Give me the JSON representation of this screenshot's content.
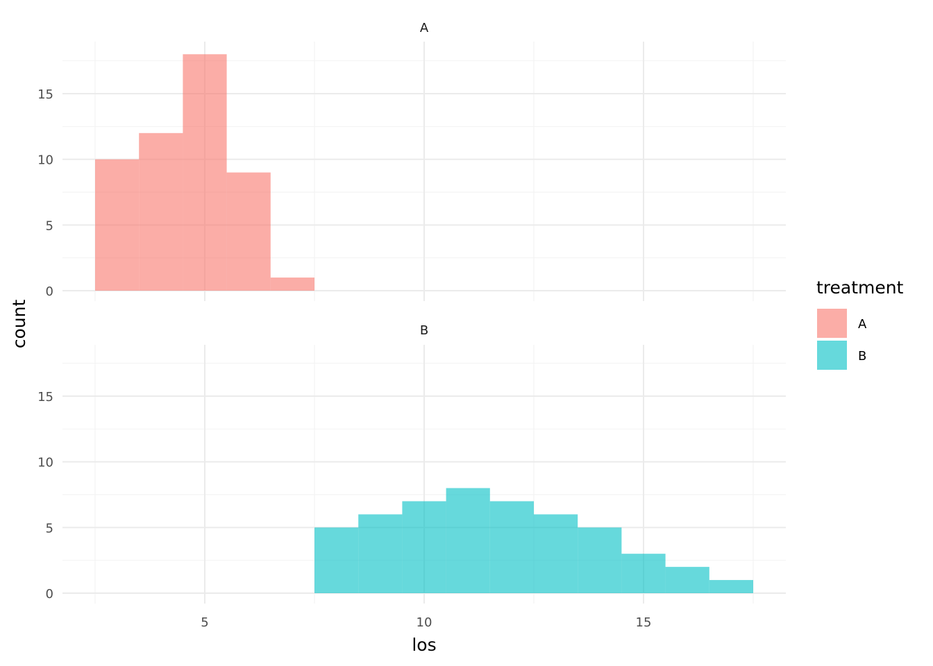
{
  "chart_data": {
    "type": "bar",
    "subtype": "histogram-faceted",
    "xlabel": "los",
    "ylabel": "count",
    "xlim": [
      2.0,
      18.5
    ],
    "ylim": [
      0,
      19
    ],
    "x_ticks": [
      5,
      10,
      15
    ],
    "y_ticks": [
      0,
      5,
      10,
      15
    ],
    "bin_width": 1,
    "grid": true,
    "legend": {
      "title": "treatment",
      "placement": "right",
      "entries": [
        {
          "label": "A",
          "color": "#F8766D"
        },
        {
          "label": "B",
          "color": "#00BFC4"
        }
      ]
    },
    "panels": [
      {
        "strip": "A",
        "color": "#F8766D",
        "bins": [
          {
            "x": 3,
            "count": 10
          },
          {
            "x": 4,
            "count": 12
          },
          {
            "x": 5,
            "count": 18
          },
          {
            "x": 6,
            "count": 9
          },
          {
            "x": 7,
            "count": 1
          }
        ]
      },
      {
        "strip": "B",
        "color": "#00BFC4",
        "bins": [
          {
            "x": 8,
            "count": 5
          },
          {
            "x": 9,
            "count": 6
          },
          {
            "x": 10,
            "count": 7
          },
          {
            "x": 11,
            "count": 8
          },
          {
            "x": 12,
            "count": 7
          },
          {
            "x": 13,
            "count": 6
          },
          {
            "x": 14,
            "count": 5
          },
          {
            "x": 15,
            "count": 3
          },
          {
            "x": 16,
            "count": 2
          },
          {
            "x": 17,
            "count": 1
          }
        ]
      }
    ]
  }
}
